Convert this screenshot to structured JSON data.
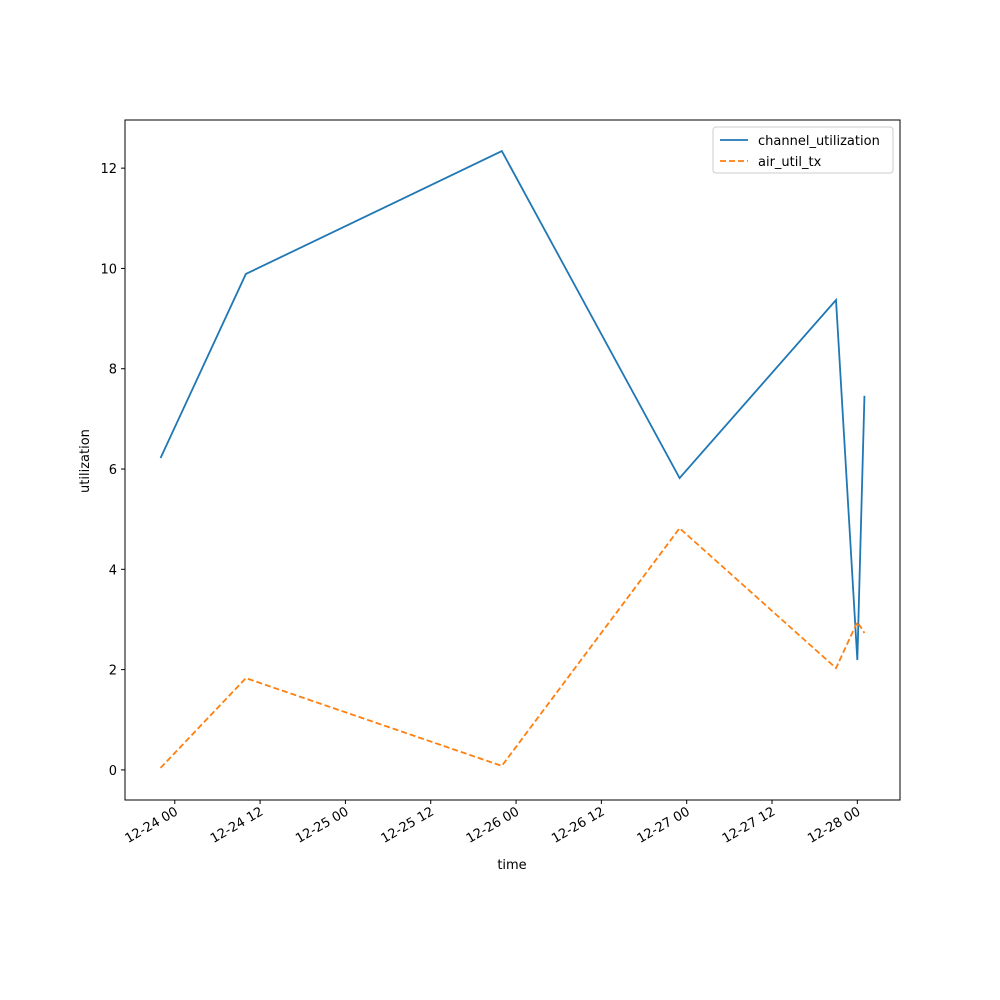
{
  "chart_data": {
    "type": "line",
    "x_label": "time",
    "y_label": "utilization",
    "x": [
      "12-23 22",
      "12-24 10",
      "12-25 22",
      "12-26 23",
      "12-27 21",
      "12-28 00",
      "12-28 01"
    ],
    "series": [
      {
        "name": "channel_utilization",
        "color": "#1f77b4",
        "dash": "solid",
        "values": [
          6.22,
          9.89,
          12.34,
          5.82,
          9.37,
          2.19,
          7.46
        ]
      },
      {
        "name": "air_util_tx",
        "color": "#ff7f0e",
        "dash": "dashed",
        "values": [
          0.04,
          1.83,
          0.08,
          4.82,
          2.03,
          2.95,
          2.73
        ]
      }
    ],
    "xlim": [
      "12-23 17",
      "12-28 06"
    ],
    "xticks": [
      "12-24 00",
      "12-24 12",
      "12-25 00",
      "12-25 12",
      "12-26 00",
      "12-26 12",
      "12-27 00",
      "12-27 12",
      "12-28 00"
    ],
    "ylim": [
      -0.6,
      12.96
    ],
    "yticks": [
      0,
      2,
      4,
      6,
      8,
      10,
      12
    ],
    "legend": "upper right",
    "grid": false
  }
}
